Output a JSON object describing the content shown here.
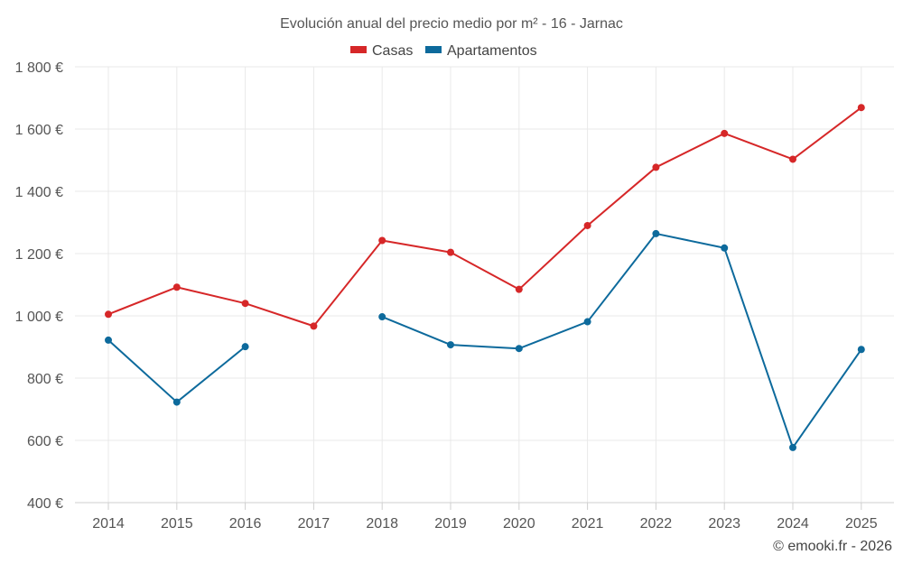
{
  "chart_data": {
    "type": "line",
    "title": "Evolución anual del precio medio por m² - 16 - Jarnac",
    "xlabel": "",
    "ylabel": "",
    "categories": [
      "2014",
      "2015",
      "2016",
      "2017",
      "2018",
      "2019",
      "2020",
      "2021",
      "2022",
      "2023",
      "2024",
      "2025"
    ],
    "y_ticks": [
      400,
      600,
      800,
      1000,
      1200,
      1400,
      1600,
      1800
    ],
    "y_tick_labels": [
      "400 €",
      "600 €",
      "800 €",
      "1 000 €",
      "1 200 €",
      "1 400 €",
      "1 600 €",
      "1 800 €"
    ],
    "ylim": [
      400,
      1800
    ],
    "grid": true,
    "legend_position": "top-center",
    "series": [
      {
        "name": "Casas",
        "color": "#d62728",
        "values": [
          1005,
          1092,
          1040,
          967,
          1242,
          1204,
          1085,
          1290,
          1477,
          1586,
          1503,
          1669
        ]
      },
      {
        "name": "Apartamentos",
        "color": "#0d6a9c",
        "values": [
          922,
          723,
          901,
          null,
          997,
          907,
          895,
          981,
          1264,
          1218,
          577,
          892
        ]
      }
    ]
  },
  "credit": "© emooki.fr - 2026"
}
